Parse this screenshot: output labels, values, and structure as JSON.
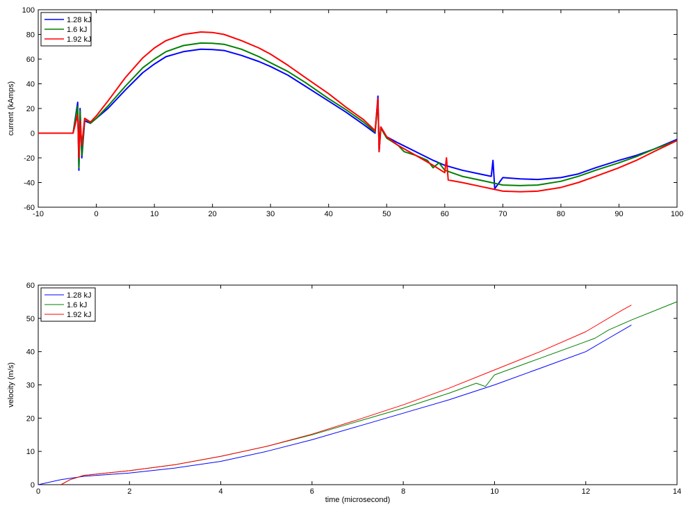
{
  "chart_data": [
    {
      "type": "line",
      "title": "",
      "xlabel": "",
      "ylabel": "current (kAmps)",
      "xlim": [
        -10,
        100
      ],
      "ylim": [
        -60,
        100
      ],
      "xticks": [
        -10,
        0,
        10,
        20,
        30,
        40,
        50,
        60,
        70,
        80,
        90,
        100
      ],
      "yticks": [
        -60,
        -40,
        -20,
        0,
        20,
        40,
        60,
        80,
        100
      ],
      "grid": false,
      "legend_position": "top-left",
      "series": [
        {
          "name": "1.28 kJ",
          "color": "#0000ff",
          "x": [
            -10,
            -4,
            -3.2,
            -3.0,
            -2.8,
            -2.5,
            -2,
            -1,
            0,
            2,
            5,
            8,
            10,
            12,
            15,
            18,
            20,
            22,
            25,
            28,
            30,
            33,
            36,
            40,
            43,
            46,
            48,
            48.5,
            48.7,
            49,
            50,
            52,
            55,
            58,
            60,
            63,
            66,
            68,
            68.3,
            68.6,
            70,
            73,
            76,
            80,
            83,
            86,
            90,
            93,
            96,
            100
          ],
          "y": [
            0,
            0,
            25,
            -30,
            20,
            -20,
            10,
            8,
            12,
            20,
            35,
            49,
            56,
            62,
            66,
            68,
            67.8,
            67,
            63,
            58,
            54,
            47,
            38,
            26,
            17,
            7,
            0,
            30,
            -15,
            5,
            -3,
            -8,
            -15,
            -22,
            -26,
            -30,
            -33,
            -35,
            -22,
            -45,
            -36,
            -37,
            -37.5,
            -36,
            -33,
            -28,
            -22,
            -18,
            -13,
            -5
          ]
        },
        {
          "name": "1.6 kJ",
          "color": "#008000",
          "x": [
            -10,
            -4,
            -3.2,
            -3.0,
            -2.8,
            -2.5,
            -2,
            -1,
            0,
            2,
            5,
            8,
            10,
            12,
            15,
            18,
            20,
            22,
            25,
            28,
            30,
            33,
            36,
            40,
            43,
            46,
            48,
            48.5,
            48.7,
            49,
            50,
            52,
            53,
            55,
            57,
            58,
            59,
            60,
            63,
            66,
            68,
            70,
            73,
            76,
            80,
            83,
            86,
            90,
            93,
            96,
            100
          ],
          "y": [
            0,
            0,
            22,
            -28,
            18,
            -18,
            12,
            8,
            12,
            22,
            38,
            53,
            60,
            66,
            71,
            73,
            72.8,
            72,
            68,
            62,
            57,
            50,
            41,
            28,
            19,
            9,
            1,
            25,
            -12,
            4,
            -4,
            -10,
            -15,
            -18,
            -22,
            -28,
            -24,
            -30,
            -35,
            -38,
            -40,
            -42,
            -42.5,
            -42,
            -39,
            -35,
            -30,
            -24,
            -19,
            -13,
            -6
          ]
        },
        {
          "name": "1.92 kJ",
          "color": "#ff0000",
          "x": [
            -10,
            -4,
            -3.2,
            -3.0,
            -2.8,
            -2.5,
            -2,
            -1,
            0,
            2,
            5,
            8,
            10,
            12,
            15,
            18,
            20,
            22,
            25,
            28,
            30,
            33,
            36,
            40,
            43,
            46,
            48,
            48.5,
            48.7,
            49,
            50,
            52,
            55,
            58,
            60,
            60.3,
            60.6,
            63,
            66,
            68,
            70,
            73,
            76,
            80,
            83,
            86,
            90,
            93,
            96,
            100
          ],
          "y": [
            0,
            0,
            15,
            -20,
            10,
            -10,
            12,
            9,
            14,
            26,
            45,
            61,
            69,
            75,
            80,
            82,
            81.6,
            80,
            75,
            69,
            64,
            55,
            45,
            32,
            21,
            11,
            2,
            28,
            -15,
            5,
            -3,
            -10,
            -18,
            -26,
            -32,
            -20,
            -38,
            -40,
            -43,
            -45,
            -47,
            -47.5,
            -47,
            -44,
            -40,
            -35,
            -28,
            -22,
            -15,
            -6
          ]
        }
      ]
    },
    {
      "type": "line",
      "title": "",
      "xlabel": "time (microsecond)",
      "ylabel": "velocity (m/s)",
      "xlim": [
        0,
        14
      ],
      "ylim": [
        0,
        60
      ],
      "xticks": [
        0,
        2,
        4,
        6,
        8,
        10,
        12,
        14
      ],
      "yticks": [
        0,
        10,
        20,
        30,
        40,
        50,
        60
      ],
      "grid": false,
      "legend_position": "top-left",
      "series": [
        {
          "name": "1.28 kJ",
          "color": "#0000ff",
          "x": [
            0,
            0.5,
            1,
            2,
            3,
            4,
            5,
            6,
            7,
            8,
            9,
            10,
            11,
            12,
            12.5,
            13
          ],
          "y": [
            0,
            1.5,
            2.5,
            3.5,
            5,
            7,
            10,
            13.5,
            17.5,
            21.5,
            25.5,
            30,
            35,
            40,
            44,
            48
          ]
        },
        {
          "name": "1.6 kJ",
          "color": "#008000",
          "x": [
            0.5,
            0.7,
            1,
            2,
            3,
            4,
            5,
            6,
            7,
            8,
            9,
            9.6,
            9.8,
            10,
            11,
            12,
            12.2,
            12.5,
            13,
            14
          ],
          "y": [
            0,
            1.5,
            2.8,
            4.2,
            6,
            8.5,
            11.5,
            15,
            19,
            23,
            27.5,
            30.5,
            29.5,
            33,
            38,
            43,
            44,
            46.5,
            49.5,
            55
          ]
        },
        {
          "name": "1.92 kJ",
          "color": "#ff0000",
          "x": [
            0.5,
            0.7,
            1,
            2,
            3,
            4,
            5,
            6,
            7,
            8,
            9,
            10,
            11,
            12,
            12.8,
            13
          ],
          "y": [
            0,
            1.5,
            2.8,
            4.2,
            6,
            8.5,
            11.5,
            15.2,
            19.5,
            24,
            29,
            34.5,
            40,
            46,
            52.5,
            54
          ]
        }
      ]
    }
  ]
}
